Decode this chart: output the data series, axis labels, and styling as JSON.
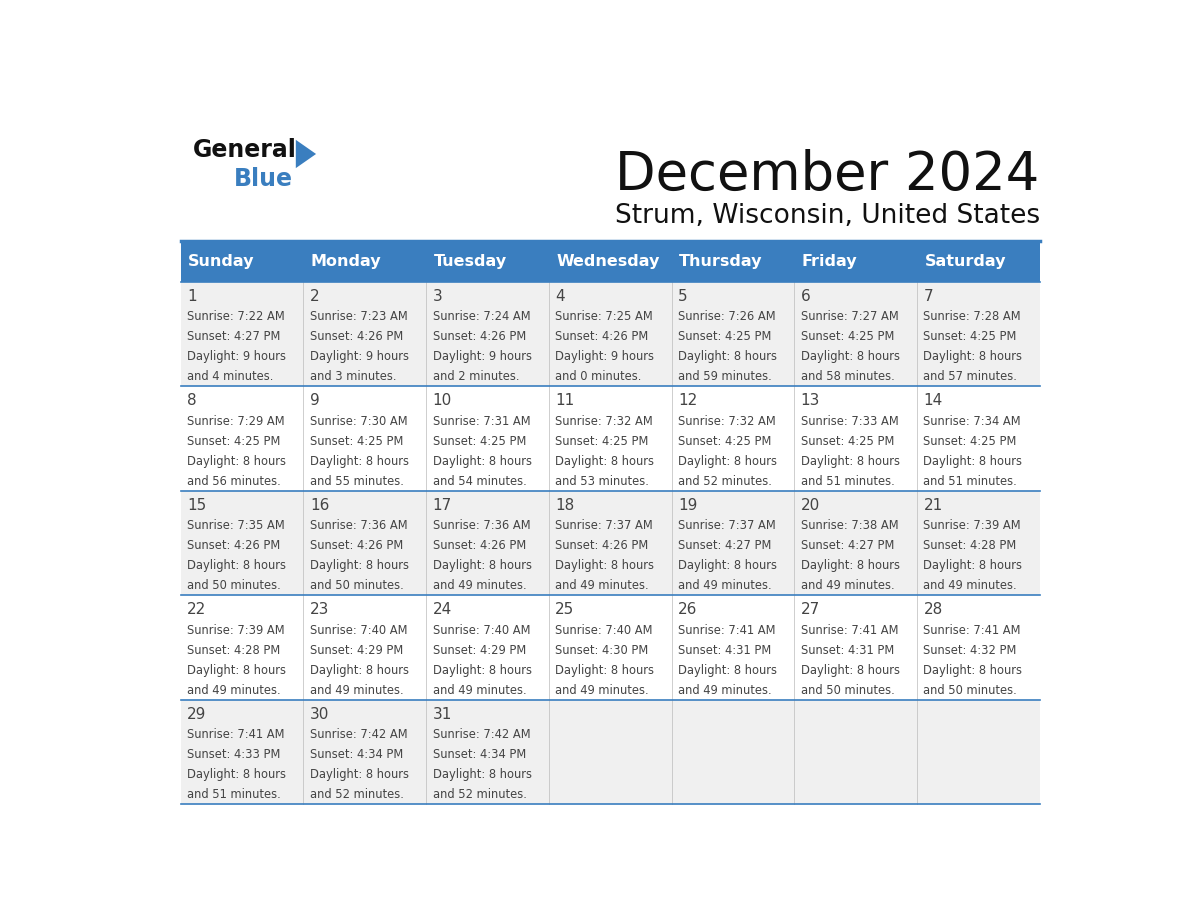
{
  "title": "December 2024",
  "subtitle": "Strum, Wisconsin, United States",
  "header_color": "#3a7ebf",
  "header_text_color": "#ffffff",
  "day_names": [
    "Sunday",
    "Monday",
    "Tuesday",
    "Wednesday",
    "Thursday",
    "Friday",
    "Saturday"
  ],
  "background_color": "#ffffff",
  "cell_bg_odd": "#f0f0f0",
  "cell_bg_even": "#ffffff",
  "divider_color": "#3a7ebf",
  "text_color": "#444444",
  "days": [
    {
      "day": 1,
      "col": 0,
      "row": 0,
      "sunrise": "7:22 AM",
      "sunset": "4:27 PM",
      "daylight": "9 hours and 4 minutes."
    },
    {
      "day": 2,
      "col": 1,
      "row": 0,
      "sunrise": "7:23 AM",
      "sunset": "4:26 PM",
      "daylight": "9 hours and 3 minutes."
    },
    {
      "day": 3,
      "col": 2,
      "row": 0,
      "sunrise": "7:24 AM",
      "sunset": "4:26 PM",
      "daylight": "9 hours and 2 minutes."
    },
    {
      "day": 4,
      "col": 3,
      "row": 0,
      "sunrise": "7:25 AM",
      "sunset": "4:26 PM",
      "daylight": "9 hours and 0 minutes."
    },
    {
      "day": 5,
      "col": 4,
      "row": 0,
      "sunrise": "7:26 AM",
      "sunset": "4:25 PM",
      "daylight": "8 hours and 59 minutes."
    },
    {
      "day": 6,
      "col": 5,
      "row": 0,
      "sunrise": "7:27 AM",
      "sunset": "4:25 PM",
      "daylight": "8 hours and 58 minutes."
    },
    {
      "day": 7,
      "col": 6,
      "row": 0,
      "sunrise": "7:28 AM",
      "sunset": "4:25 PM",
      "daylight": "8 hours and 57 minutes."
    },
    {
      "day": 8,
      "col": 0,
      "row": 1,
      "sunrise": "7:29 AM",
      "sunset": "4:25 PM",
      "daylight": "8 hours and 56 minutes."
    },
    {
      "day": 9,
      "col": 1,
      "row": 1,
      "sunrise": "7:30 AM",
      "sunset": "4:25 PM",
      "daylight": "8 hours and 55 minutes."
    },
    {
      "day": 10,
      "col": 2,
      "row": 1,
      "sunrise": "7:31 AM",
      "sunset": "4:25 PM",
      "daylight": "8 hours and 54 minutes."
    },
    {
      "day": 11,
      "col": 3,
      "row": 1,
      "sunrise": "7:32 AM",
      "sunset": "4:25 PM",
      "daylight": "8 hours and 53 minutes."
    },
    {
      "day": 12,
      "col": 4,
      "row": 1,
      "sunrise": "7:32 AM",
      "sunset": "4:25 PM",
      "daylight": "8 hours and 52 minutes."
    },
    {
      "day": 13,
      "col": 5,
      "row": 1,
      "sunrise": "7:33 AM",
      "sunset": "4:25 PM",
      "daylight": "8 hours and 51 minutes."
    },
    {
      "day": 14,
      "col": 6,
      "row": 1,
      "sunrise": "7:34 AM",
      "sunset": "4:25 PM",
      "daylight": "8 hours and 51 minutes."
    },
    {
      "day": 15,
      "col": 0,
      "row": 2,
      "sunrise": "7:35 AM",
      "sunset": "4:26 PM",
      "daylight": "8 hours and 50 minutes."
    },
    {
      "day": 16,
      "col": 1,
      "row": 2,
      "sunrise": "7:36 AM",
      "sunset": "4:26 PM",
      "daylight": "8 hours and 50 minutes."
    },
    {
      "day": 17,
      "col": 2,
      "row": 2,
      "sunrise": "7:36 AM",
      "sunset": "4:26 PM",
      "daylight": "8 hours and 49 minutes."
    },
    {
      "day": 18,
      "col": 3,
      "row": 2,
      "sunrise": "7:37 AM",
      "sunset": "4:26 PM",
      "daylight": "8 hours and 49 minutes."
    },
    {
      "day": 19,
      "col": 4,
      "row": 2,
      "sunrise": "7:37 AM",
      "sunset": "4:27 PM",
      "daylight": "8 hours and 49 minutes."
    },
    {
      "day": 20,
      "col": 5,
      "row": 2,
      "sunrise": "7:38 AM",
      "sunset": "4:27 PM",
      "daylight": "8 hours and 49 minutes."
    },
    {
      "day": 21,
      "col": 6,
      "row": 2,
      "sunrise": "7:39 AM",
      "sunset": "4:28 PM",
      "daylight": "8 hours and 49 minutes."
    },
    {
      "day": 22,
      "col": 0,
      "row": 3,
      "sunrise": "7:39 AM",
      "sunset": "4:28 PM",
      "daylight": "8 hours and 49 minutes."
    },
    {
      "day": 23,
      "col": 1,
      "row": 3,
      "sunrise": "7:40 AM",
      "sunset": "4:29 PM",
      "daylight": "8 hours and 49 minutes."
    },
    {
      "day": 24,
      "col": 2,
      "row": 3,
      "sunrise": "7:40 AM",
      "sunset": "4:29 PM",
      "daylight": "8 hours and 49 minutes."
    },
    {
      "day": 25,
      "col": 3,
      "row": 3,
      "sunrise": "7:40 AM",
      "sunset": "4:30 PM",
      "daylight": "8 hours and 49 minutes."
    },
    {
      "day": 26,
      "col": 4,
      "row": 3,
      "sunrise": "7:41 AM",
      "sunset": "4:31 PM",
      "daylight": "8 hours and 49 minutes."
    },
    {
      "day": 27,
      "col": 5,
      "row": 3,
      "sunrise": "7:41 AM",
      "sunset": "4:31 PM",
      "daylight": "8 hours and 50 minutes."
    },
    {
      "day": 28,
      "col": 6,
      "row": 3,
      "sunrise": "7:41 AM",
      "sunset": "4:32 PM",
      "daylight": "8 hours and 50 minutes."
    },
    {
      "day": 29,
      "col": 0,
      "row": 4,
      "sunrise": "7:41 AM",
      "sunset": "4:33 PM",
      "daylight": "8 hours and 51 minutes."
    },
    {
      "day": 30,
      "col": 1,
      "row": 4,
      "sunrise": "7:42 AM",
      "sunset": "4:34 PM",
      "daylight": "8 hours and 52 minutes."
    },
    {
      "day": 31,
      "col": 2,
      "row": 4,
      "sunrise": "7:42 AM",
      "sunset": "4:34 PM",
      "daylight": "8 hours and 52 minutes."
    }
  ]
}
